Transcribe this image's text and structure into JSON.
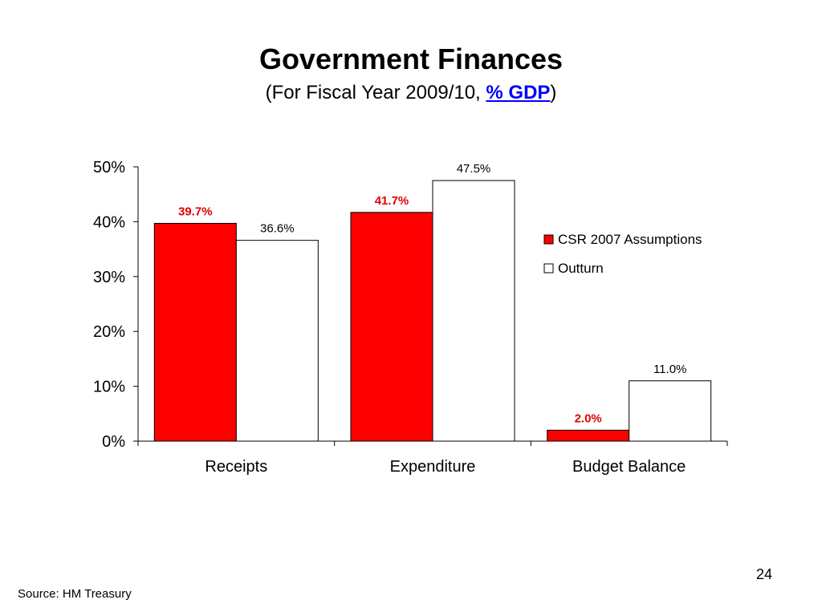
{
  "slide": {
    "title": "Government Finances",
    "subtitle_prefix": "(For Fiscal Year 2009/10, ",
    "subtitle_link": "% GDP",
    "subtitle_suffix": ")",
    "page_number": "24",
    "source": "Source: HM Treasury"
  },
  "colors": {
    "csr": "#ff0000",
    "outturn": "#ffffff",
    "csr_label": "#e00000"
  },
  "chart_data": {
    "type": "bar",
    "categories": [
      "Receipts",
      "Expenditure",
      "Budget Balance"
    ],
    "series": [
      {
        "name": "CSR 2007 Assumptions",
        "values": [
          39.7,
          41.7,
          2.0
        ],
        "labels": [
          "39.7%",
          "41.7%",
          "2.0%"
        ]
      },
      {
        "name": "Outturn",
        "values": [
          36.6,
          47.5,
          11.0
        ],
        "labels": [
          "36.6%",
          "47.5%",
          "11.0%"
        ]
      }
    ],
    "ylim": [
      0,
      50
    ],
    "yticks": [
      0,
      10,
      20,
      30,
      40,
      50
    ],
    "ytick_labels": [
      "0%",
      "10%",
      "20%",
      "30%",
      "40%",
      "50%"
    ],
    "grid": false,
    "legend": "right"
  }
}
